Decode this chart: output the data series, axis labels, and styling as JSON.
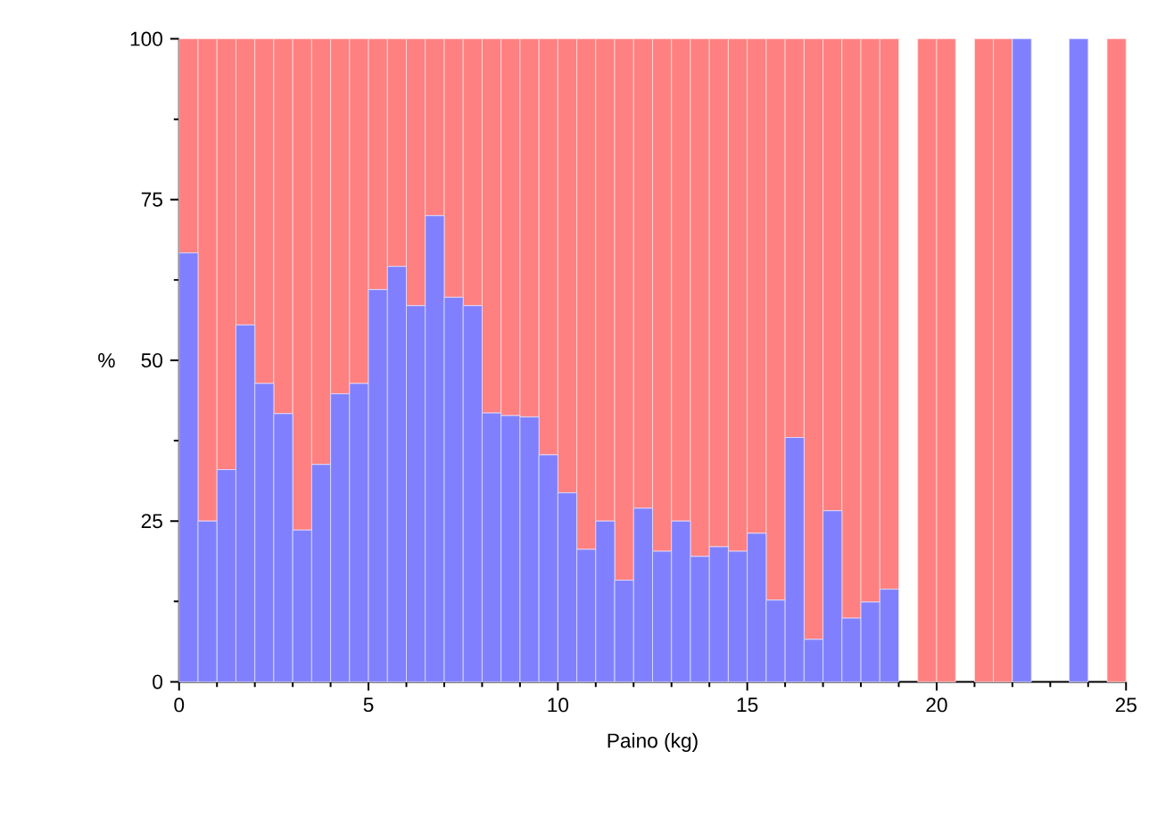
{
  "chart_data": {
    "type": "bar",
    "stacked": true,
    "xlabel": "Paino (kg)",
    "ylabel": "%",
    "x": [
      0.25,
      0.75,
      1.25,
      1.75,
      2.25,
      2.75,
      3.25,
      3.75,
      4.25,
      4.75,
      5.25,
      5.75,
      6.25,
      6.75,
      7.25,
      7.75,
      8.25,
      8.75,
      9.25,
      9.75,
      10.25,
      10.75,
      11.25,
      11.75,
      12.25,
      12.75,
      13.25,
      13.75,
      14.25,
      14.75,
      15.25,
      15.75,
      16.25,
      16.75,
      17.25,
      17.75,
      18.25,
      18.75,
      19.25,
      19.75,
      20.25,
      20.75,
      21.25,
      21.75,
      22.25,
      22.75,
      23.25,
      23.75,
      24.25,
      24.75
    ],
    "series": [
      {
        "color": "#8080ff",
        "values": [
          66.7,
          25,
          33,
          55.5,
          46.4,
          41.7,
          23.6,
          33.8,
          44.8,
          46.4,
          61,
          64.6,
          58.5,
          72.5,
          59.8,
          58.5,
          41.8,
          41.4,
          41.2,
          35.3,
          29.4,
          20.6,
          25,
          15.8,
          27,
          20.3,
          25,
          19.5,
          21,
          20.3,
          23.1,
          12.7,
          38,
          6.6,
          26.6,
          9.9,
          12.4,
          14.4,
          null,
          0,
          0,
          null,
          0,
          0,
          100,
          null,
          null,
          100,
          null,
          0
        ]
      },
      {
        "color": "#ff8080",
        "values": [
          33.3,
          75,
          67,
          44.5,
          53.6,
          58.3,
          76.4,
          66.2,
          55.2,
          53.6,
          39,
          35.4,
          41.5,
          27.5,
          40.2,
          41.5,
          58.2,
          58.6,
          58.8,
          64.7,
          70.6,
          79.4,
          75,
          84.2,
          73,
          79.7,
          75,
          80.5,
          79,
          79.7,
          76.9,
          87.3,
          62,
          93.4,
          73.4,
          90.1,
          87.6,
          85.6,
          null,
          100,
          100,
          null,
          100,
          100,
          0,
          null,
          null,
          0,
          null,
          100
        ]
      }
    ],
    "xlim": [
      0,
      25
    ],
    "ylim": [
      0,
      100
    ],
    "xticks": [
      0,
      5,
      10,
      15,
      20,
      25
    ],
    "yticks": [
      0,
      25,
      50,
      75,
      100
    ],
    "grid": false
  }
}
